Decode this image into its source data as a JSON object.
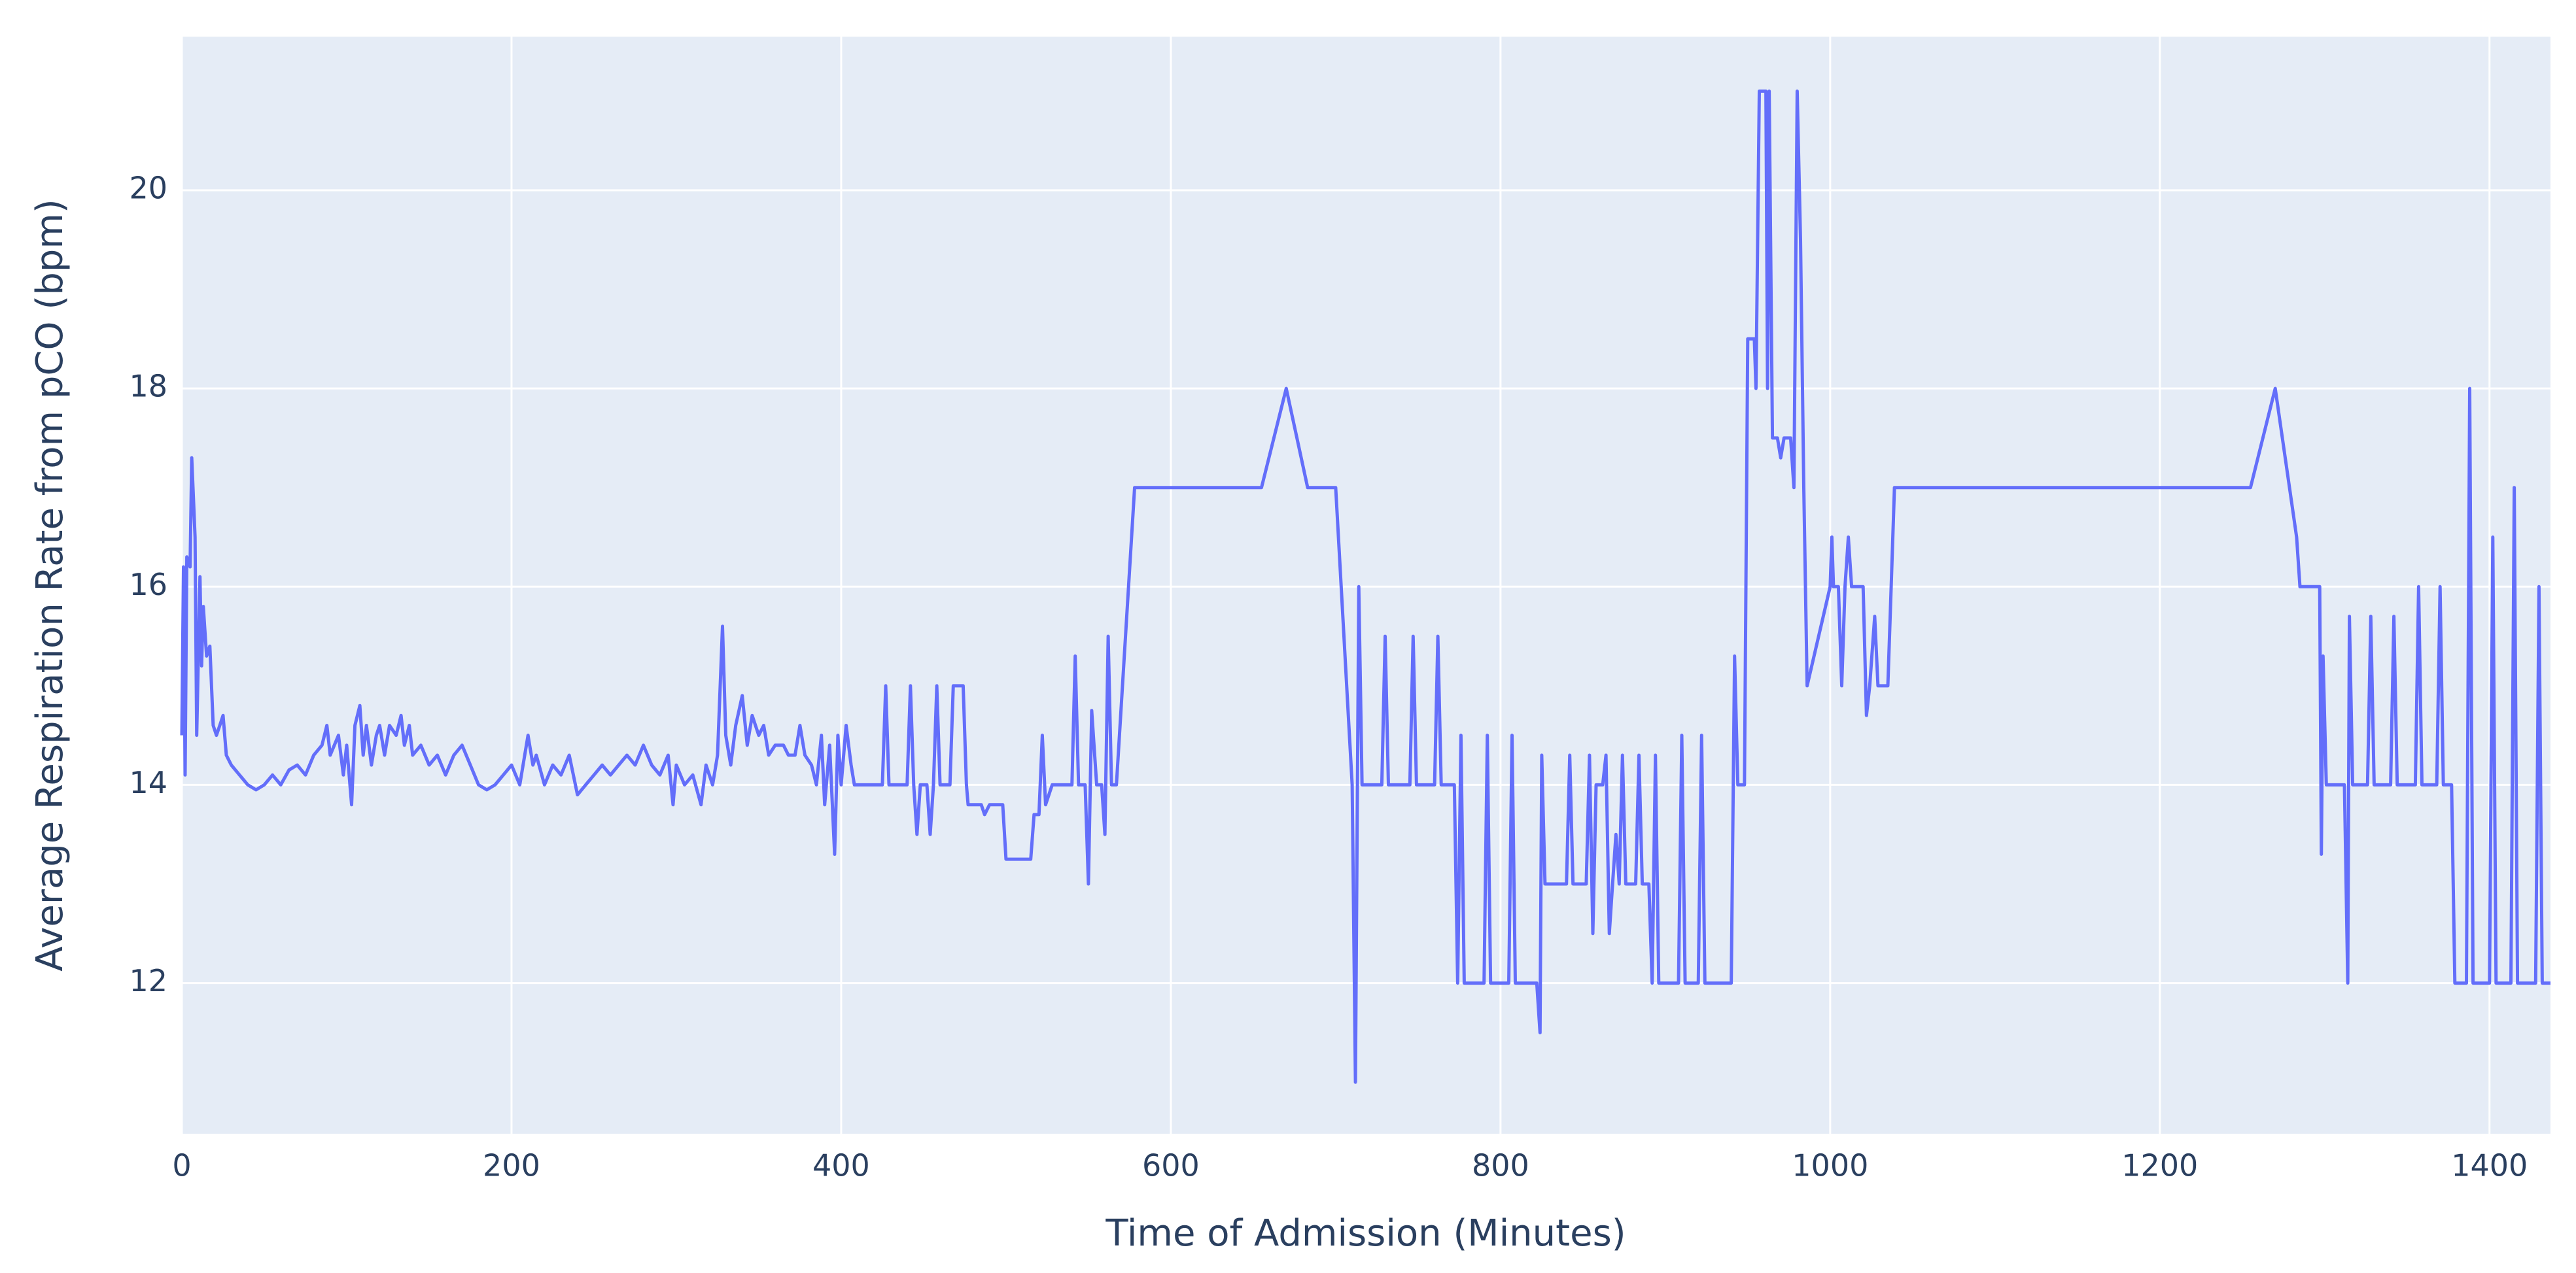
{
  "chart_data": {
    "type": "line",
    "x_label": "Time of Admission (Minutes)",
    "y_label": "Average Respiration Rate from pCO (bpm)",
    "xlim": [
      0,
      1437
    ],
    "ylim": [
      10.48,
      21.55
    ],
    "xticks": [
      0,
      200,
      400,
      600,
      800,
      1000,
      1200,
      1400
    ],
    "yticks": [
      12,
      14,
      16,
      18,
      20
    ],
    "grid": true,
    "x": [
      0,
      1,
      2,
      3,
      5,
      6,
      8,
      9,
      11,
      12,
      13,
      15,
      17,
      19,
      21,
      23,
      25,
      27,
      30,
      35,
      40,
      45,
      50,
      55,
      60,
      65,
      70,
      75,
      80,
      85,
      88,
      90,
      95,
      98,
      100,
      103,
      105,
      108,
      110,
      112,
      115,
      118,
      120,
      123,
      126,
      130,
      133,
      135,
      138,
      140,
      145,
      150,
      155,
      160,
      165,
      170,
      175,
      180,
      185,
      190,
      195,
      200,
      205,
      210,
      213,
      215,
      220,
      225,
      230,
      235,
      240,
      245,
      250,
      255,
      260,
      265,
      270,
      275,
      280,
      285,
      290,
      295,
      298,
      300,
      305,
      310,
      315,
      318,
      322,
      325,
      328,
      330,
      333,
      336,
      340,
      343,
      346,
      350,
      353,
      356,
      360,
      365,
      368,
      372,
      375,
      378,
      382,
      385,
      388,
      390,
      393,
      396,
      398,
      400,
      403,
      406,
      408,
      415,
      425,
      427,
      429,
      440,
      442,
      444,
      446,
      448,
      452,
      454,
      456,
      458,
      460,
      466,
      468,
      474,
      476,
      477,
      485,
      487,
      490,
      498,
      500,
      515,
      517,
      520,
      522,
      524,
      528,
      540,
      542,
      544,
      548,
      550,
      552,
      555,
      558,
      560,
      562,
      564,
      567,
      578,
      655,
      670,
      683,
      700,
      710,
      712,
      714,
      716,
      728,
      730,
      732,
      745,
      747,
      749,
      760,
      762,
      764,
      772,
      774,
      776,
      778,
      790,
      792,
      794,
      805,
      807,
      809,
      822,
      824,
      825,
      827,
      840,
      842,
      844,
      852,
      854,
      856,
      858,
      862,
      864,
      866,
      868,
      870,
      872,
      874,
      876,
      882,
      884,
      886,
      890,
      892,
      894,
      896,
      908,
      910,
      912,
      920,
      922,
      924,
      940,
      942,
      944,
      948,
      950,
      954,
      955,
      957,
      961,
      962,
      963,
      965,
      968,
      970,
      972,
      976,
      978,
      980,
      982,
      984,
      986,
      1000,
      1001,
      1002,
      1005,
      1007,
      1009,
      1011,
      1013,
      1020,
      1022,
      1024,
      1027,
      1029,
      1035,
      1037,
      1039,
      1255,
      1270,
      1283,
      1285,
      1297,
      1298,
      1299,
      1301,
      1312,
      1314,
      1315,
      1317,
      1326,
      1328,
      1330,
      1340,
      1342,
      1344,
      1355,
      1357,
      1359,
      1368,
      1370,
      1372,
      1377,
      1379,
      1386,
      1388,
      1390,
      1400,
      1402,
      1404,
      1413,
      1415,
      1417,
      1428,
      1430,
      1432,
      1437
    ],
    "series": [
      {
        "color": "#636efa",
        "values": [
          14.5,
          16.2,
          14.1,
          16.3,
          16.2,
          17.3,
          16.5,
          14.5,
          16.1,
          15.2,
          15.8,
          15.3,
          15.4,
          14.6,
          14.5,
          14.6,
          14.7,
          14.3,
          14.2,
          14.1,
          14.0,
          13.95,
          14.0,
          14.1,
          14.0,
          14.15,
          14.2,
          14.1,
          14.3,
          14.4,
          14.6,
          14.3,
          14.5,
          14.1,
          14.4,
          13.8,
          14.6,
          14.8,
          14.3,
          14.6,
          14.2,
          14.5,
          14.6,
          14.3,
          14.6,
          14.5,
          14.7,
          14.4,
          14.6,
          14.3,
          14.4,
          14.2,
          14.3,
          14.1,
          14.3,
          14.4,
          14.2,
          14.0,
          13.95,
          14.0,
          14.1,
          14.2,
          14.0,
          14.5,
          14.2,
          14.3,
          14.0,
          14.2,
          14.1,
          14.3,
          13.9,
          14.0,
          14.1,
          14.2,
          14.1,
          14.2,
          14.3,
          14.2,
          14.4,
          14.2,
          14.1,
          14.3,
          13.8,
          14.2,
          14.0,
          14.1,
          13.8,
          14.2,
          14.0,
          14.3,
          15.6,
          14.5,
          14.2,
          14.6,
          14.9,
          14.4,
          14.7,
          14.5,
          14.6,
          14.3,
          14.4,
          14.4,
          14.3,
          14.3,
          14.6,
          14.3,
          14.2,
          14.0,
          14.5,
          13.8,
          14.4,
          13.3,
          14.5,
          14.0,
          14.6,
          14.2,
          14.0,
          14.0,
          14.0,
          15.0,
          14.0,
          14.0,
          15.0,
          14.0,
          13.5,
          14.0,
          14.0,
          13.5,
          14.0,
          15.0,
          14.0,
          14.0,
          15.0,
          15.0,
          14.0,
          13.8,
          13.8,
          13.7,
          13.8,
          13.8,
          13.25,
          13.25,
          13.7,
          13.7,
          14.5,
          13.8,
          14.0,
          14.0,
          15.3,
          14.0,
          14.0,
          13.0,
          14.75,
          14.0,
          14.0,
          13.5,
          15.5,
          14.0,
          14.0,
          17.0,
          17.0,
          18.0,
          17.0,
          17.0,
          14.0,
          11.0,
          16.0,
          14.0,
          14.0,
          15.5,
          14.0,
          14.0,
          15.5,
          14.0,
          14.0,
          15.5,
          14.0,
          14.0,
          12.0,
          14.5,
          12.0,
          12.0,
          14.5,
          12.0,
          12.0,
          14.5,
          12.0,
          12.0,
          11.5,
          14.3,
          13.0,
          13.0,
          14.3,
          13.0,
          13.0,
          14.3,
          12.5,
          14.0,
          14.0,
          14.3,
          12.5,
          13.0,
          13.5,
          13.0,
          14.3,
          13.0,
          13.0,
          14.3,
          13.0,
          13.0,
          12.0,
          14.3,
          12.0,
          12.0,
          14.5,
          12.0,
          12.0,
          14.5,
          12.0,
          12.0,
          15.3,
          14.0,
          14.0,
          18.5,
          18.5,
          18.0,
          21.0,
          21.0,
          18.0,
          21.0,
          17.5,
          17.5,
          17.3,
          17.5,
          17.5,
          17.0,
          21.0,
          19.5,
          17.0,
          15.0,
          16.0,
          16.5,
          16.0,
          16.0,
          15.0,
          16.0,
          16.5,
          16.0,
          16.0,
          14.7,
          15.0,
          15.7,
          15.0,
          15.0,
          16.0,
          17.0,
          17.0,
          18.0,
          16.5,
          16.0,
          16.0,
          13.3,
          15.3,
          14.0,
          14.0,
          12.0,
          15.7,
          14.0,
          14.0,
          15.7,
          14.0,
          14.0,
          15.7,
          14.0,
          14.0,
          16.0,
          14.0,
          14.0,
          16.0,
          14.0,
          14.0,
          12.0,
          12.0,
          18.0,
          12.0,
          12.0,
          16.5,
          12.0,
          12.0,
          17.0,
          12.0,
          12.0,
          16.0,
          12.0,
          12.0
        ]
      }
    ]
  }
}
